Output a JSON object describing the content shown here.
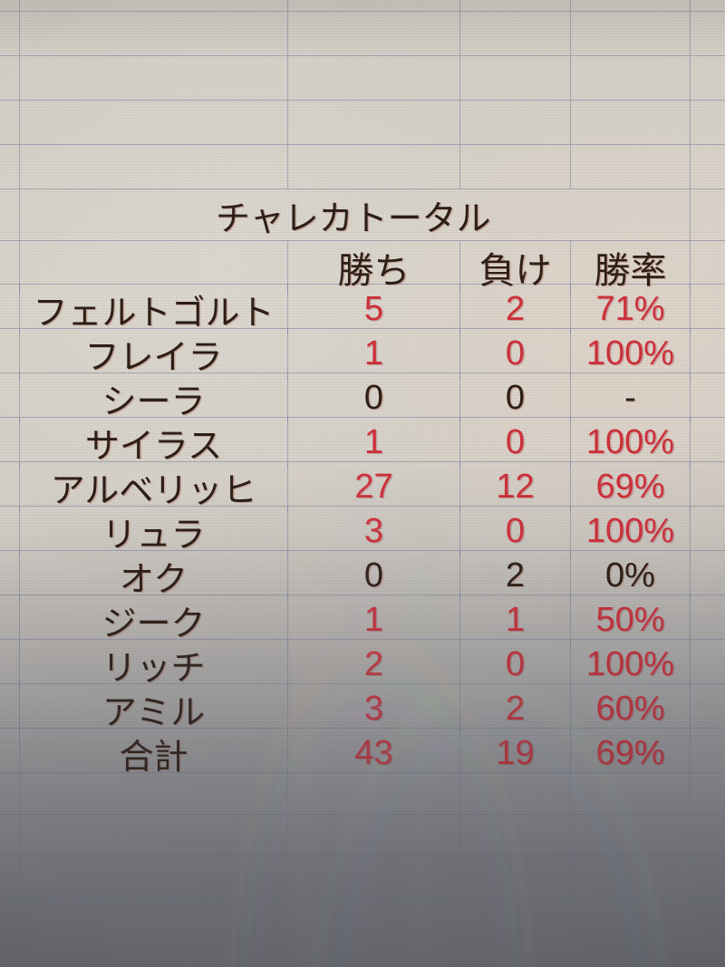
{
  "colors": {
    "red": "#cf2e38",
    "ink": "#2a1c14",
    "gridline": "rgba(118,128,158,0.55)",
    "screen_bg": "#d8d3c9"
  },
  "sheet": {
    "title": "チャレカトータル",
    "headers": {
      "wins": "勝ち",
      "losses": "負け",
      "rate": "勝率"
    },
    "rows": [
      {
        "name": "フェルトゴルト",
        "wins": "5",
        "losses": "2",
        "rate": "71%",
        "tone": "red"
      },
      {
        "name": "フレイラ",
        "wins": "1",
        "losses": "0",
        "rate": "100%",
        "tone": "red"
      },
      {
        "name": "シーラ",
        "wins": "0",
        "losses": "0",
        "rate": "-",
        "tone": "dark"
      },
      {
        "name": "サイラス",
        "wins": "1",
        "losses": "0",
        "rate": "100%",
        "tone": "red"
      },
      {
        "name": "アルベリッヒ",
        "wins": "27",
        "losses": "12",
        "rate": "69%",
        "tone": "red"
      },
      {
        "name": "リュラ",
        "wins": "3",
        "losses": "0",
        "rate": "100%",
        "tone": "red"
      },
      {
        "name": "オク",
        "wins": "0",
        "losses": "2",
        "rate": "0%",
        "tone": "dark"
      },
      {
        "name": "ジーク",
        "wins": "1",
        "losses": "1",
        "rate": "50%",
        "tone": "red"
      },
      {
        "name": "リッチ",
        "wins": "2",
        "losses": "0",
        "rate": "100%",
        "tone": "red"
      },
      {
        "name": "アミル",
        "wins": "3",
        "losses": "2",
        "rate": "60%",
        "tone": "red"
      },
      {
        "name": "合計",
        "wins": "43",
        "losses": "19",
        "rate": "69%",
        "tone": "red"
      }
    ]
  }
}
